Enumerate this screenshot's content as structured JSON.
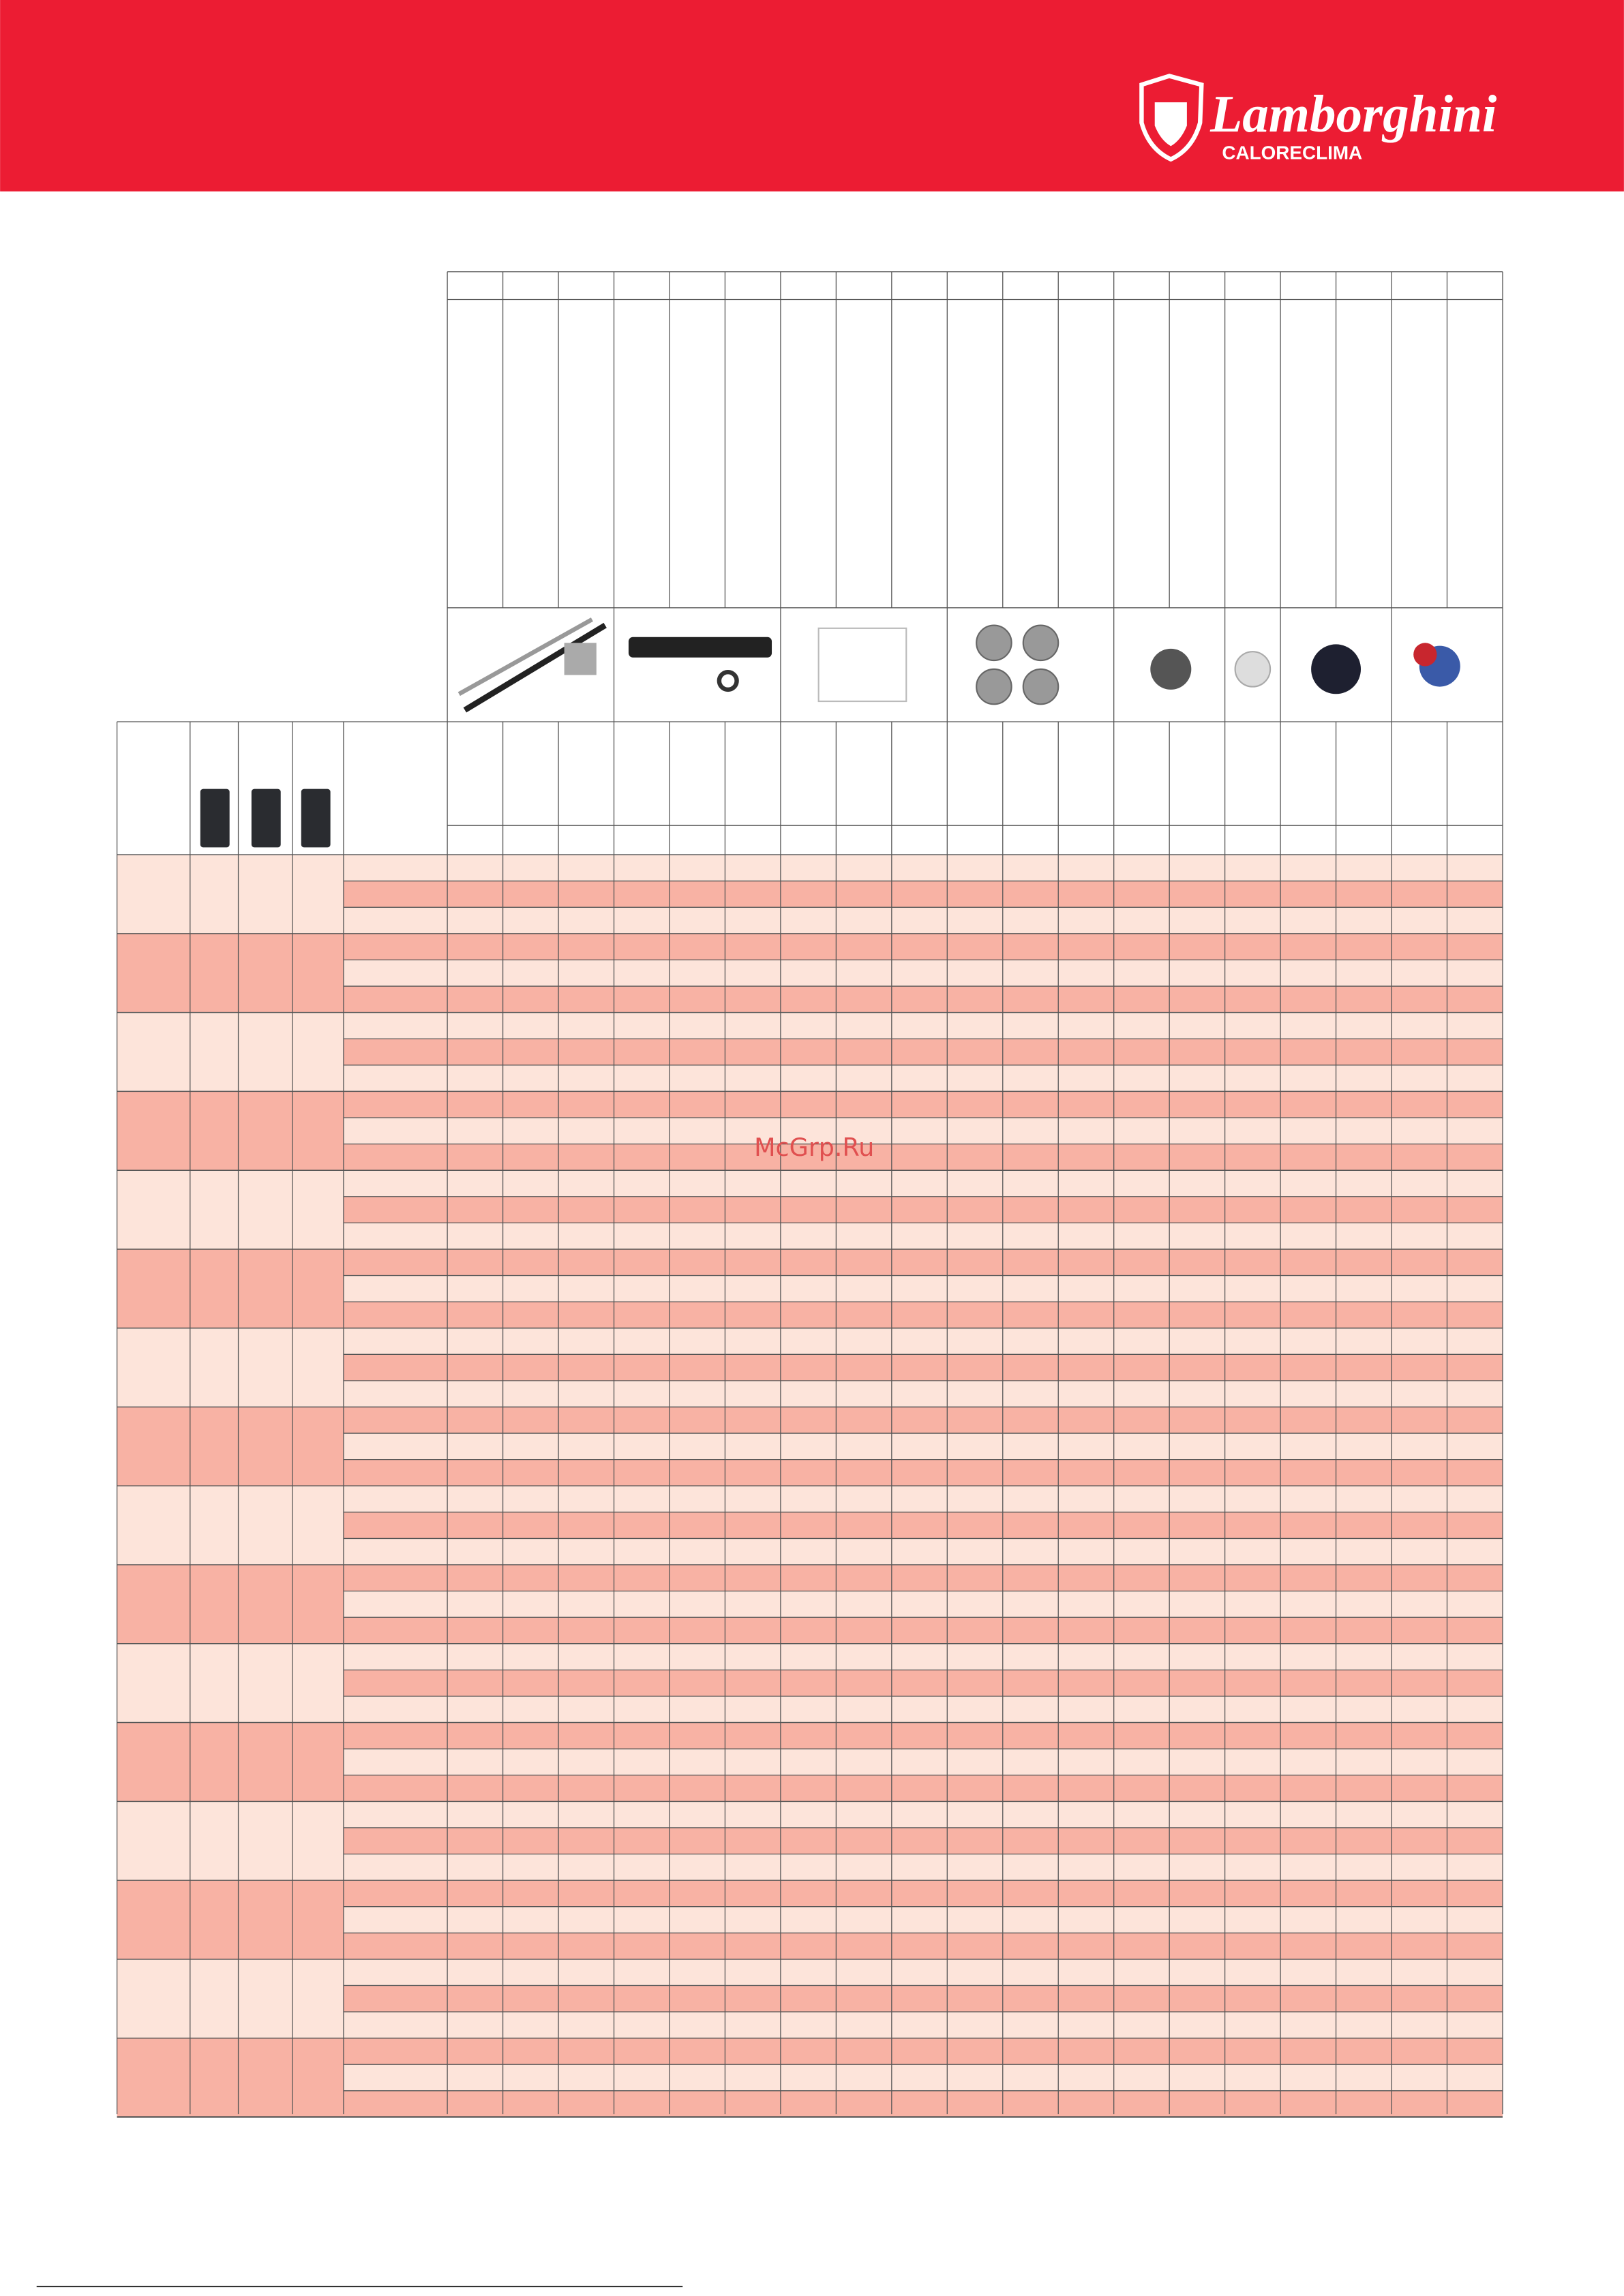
{
  "header": {
    "brand": "Lamborghini",
    "sub": "CALORECLIMA"
  },
  "watermark": "McGrp.Ru"
}
